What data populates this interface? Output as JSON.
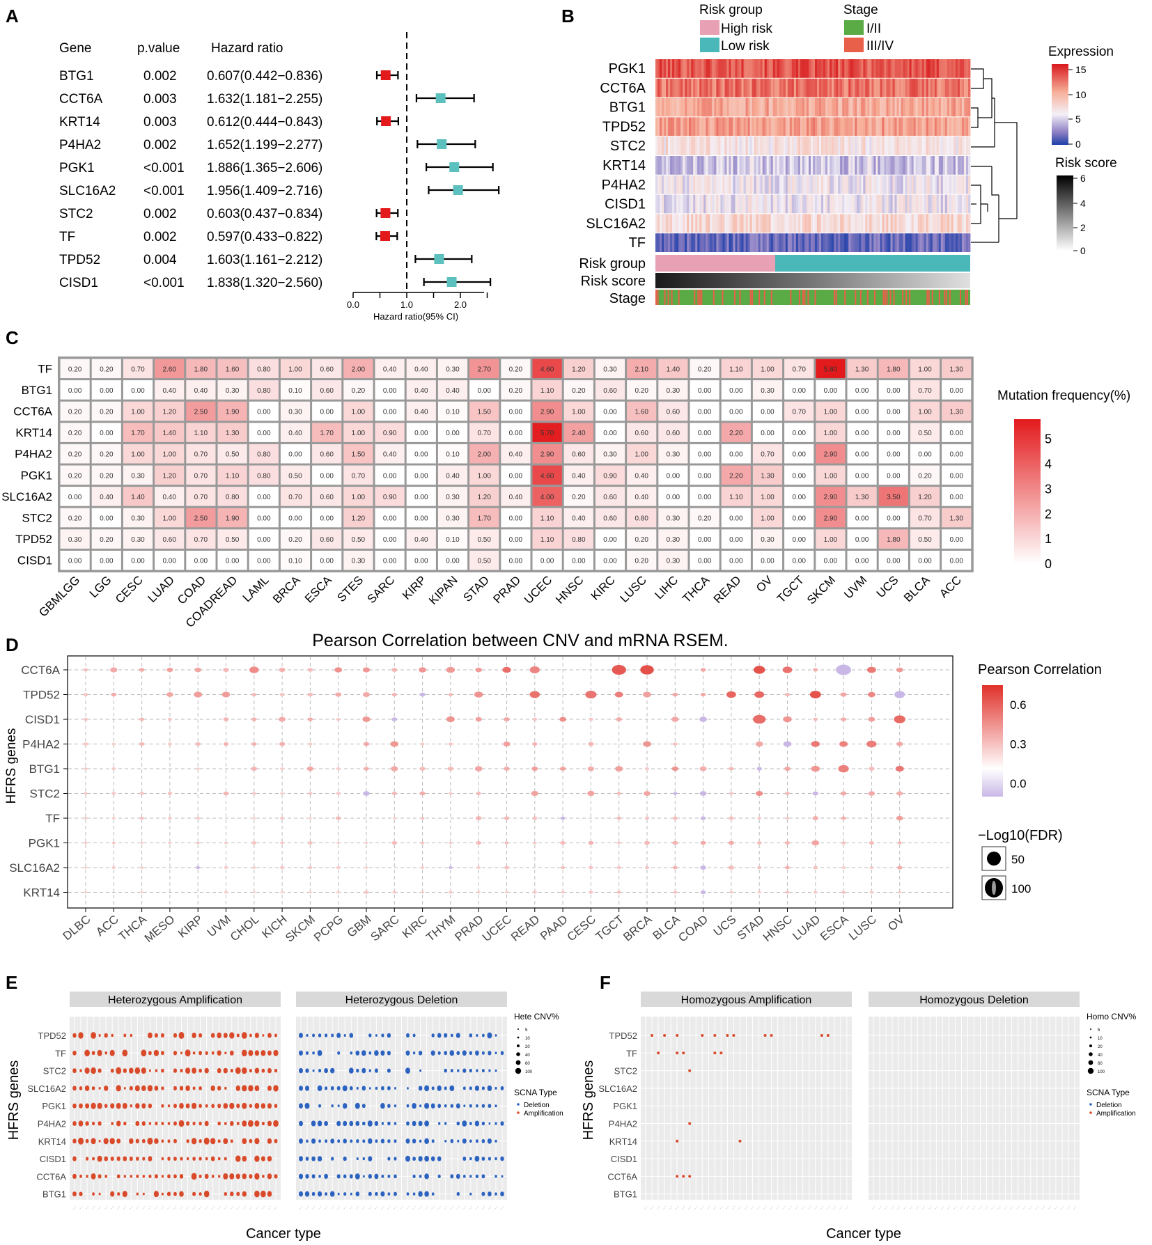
{
  "colors": {
    "red": "#e31a1c",
    "teal": "#5bc0be",
    "high_risk": "#e8a0b4",
    "low_risk": "#4ab8b8",
    "stage12": "#5aaa46",
    "stage34": "#e8604a",
    "amp": "#d94a2a",
    "del": "#2c63c0",
    "panel_bg": "#ebebeb",
    "strip": "#d9d9d9"
  },
  "panelA": {
    "letter": "A",
    "headers": {
      "gene": "Gene",
      "p": "p.value",
      "hr": "Hazard ratio"
    },
    "rows": [
      {
        "gene": "BTG1",
        "p": "0.002",
        "hr_text": "0.607(0.442−0.836)",
        "hr": 0.607,
        "lo": 0.442,
        "hi": 0.836
      },
      {
        "gene": "CCT6A",
        "p": "0.003",
        "hr_text": "1.632(1.181−2.255)",
        "hr": 1.632,
        "lo": 1.181,
        "hi": 2.255
      },
      {
        "gene": "KRT14",
        "p": "0.003",
        "hr_text": "0.612(0.444−0.843)",
        "hr": 0.612,
        "lo": 0.444,
        "hi": 0.843
      },
      {
        "gene": "P4HA2",
        "p": "0.002",
        "hr_text": "1.652(1.199−2.277)",
        "hr": 1.652,
        "lo": 1.199,
        "hi": 2.277
      },
      {
        "gene": "PGK1",
        "p": "<0.001",
        "hr_text": "1.886(1.365−2.606)",
        "hr": 1.886,
        "lo": 1.365,
        "hi": 2.606
      },
      {
        "gene": "SLC16A2",
        "p": "<0.001",
        "hr_text": "1.956(1.409−2.716)",
        "hr": 1.956,
        "lo": 1.409,
        "hi": 2.716
      },
      {
        "gene": "STC2",
        "p": "0.002",
        "hr_text": "0.603(0.437−0.834)",
        "hr": 0.603,
        "lo": 0.437,
        "hi": 0.834
      },
      {
        "gene": "TF",
        "p": "0.002",
        "hr_text": "0.597(0.433−0.822)",
        "hr": 0.597,
        "lo": 0.433,
        "hi": 0.822
      },
      {
        "gene": "TPD52",
        "p": "0.004",
        "hr_text": "1.603(1.161−2.212)",
        "hr": 1.603,
        "lo": 1.161,
        "hi": 2.212
      },
      {
        "gene": "CISD1",
        "p": "<0.001",
        "hr_text": "1.838(1.320−2.560)",
        "hr": 1.838,
        "lo": 1.32,
        "hi": 2.56
      }
    ],
    "xticks": [
      "0.0",
      "1.0",
      "2.0"
    ],
    "xlabel": "Hazard ratio(95% CI)"
  },
  "panelB": {
    "letter": "B",
    "legend_risk_title": "Risk group",
    "legend_risk": [
      "High risk",
      "Low risk"
    ],
    "legend_stage_title": "Stage",
    "legend_stage": [
      "I/II",
      "III/IV"
    ],
    "genes": [
      "PGK1",
      "CCT6A",
      "BTG1",
      "TPD52",
      "STC2",
      "KRT14",
      "P4HA2",
      "CISD1",
      "SLC16A2",
      "TF"
    ],
    "annotations": [
      "Risk group",
      "Risk score",
      "Stage"
    ],
    "expression_title": "Expression",
    "expression_ticks": [
      "15",
      "10",
      "5",
      "0"
    ],
    "riskscore_title": "Risk score",
    "riskscore_ticks": [
      "6",
      "4",
      "2",
      "0"
    ]
  },
  "panelC": {
    "letter": "C",
    "legend_title": "Mutation frequency(%)",
    "legend_ticks": [
      "5",
      "4",
      "3",
      "2",
      "1",
      "0"
    ]
  },
  "panelD": {
    "letter": "D",
    "title": "Pearson Correlation between CNV and mRNA RSEM.",
    "ylabel": "HFRS genes",
    "legend_title": "Pearson Correlation",
    "legend_ticks": [
      "0.6",
      "0.3",
      "0.0"
    ],
    "size_title": "−Log10(FDR)",
    "size_ticks": [
      "50",
      "100"
    ]
  },
  "panelE": {
    "letter": "E",
    "facets": [
      "Heterozygous Amplification",
      "Heterozygous Deletion"
    ],
    "ylabel": "HFRS genes",
    "xlabel": "Cancer type",
    "genes": [
      "TPD52",
      "TF",
      "STC2",
      "SLC16A2",
      "PGK1",
      "P4HA2",
      "KRT14",
      "CISD1",
      "CCT6A",
      "BTG1"
    ],
    "size_title": "Hete CNV%",
    "size_ticks": [
      "5",
      "10",
      "20",
      "40",
      "60",
      "100"
    ],
    "type_title": "SCNA Type",
    "type_items": [
      "Deletion",
      "Amplification"
    ]
  },
  "panelF": {
    "letter": "F",
    "facets": [
      "Homozygous Amplification",
      "Homozygous Deletion"
    ],
    "ylabel": "HFRS genes",
    "xlabel": "Cancer type",
    "genes": [
      "TPD52",
      "TF",
      "STC2",
      "SLC16A2",
      "PGK1",
      "P4HA2",
      "KRT14",
      "CISD1",
      "CCT6A",
      "BTG1"
    ],
    "size_title": "Homo CNV%",
    "size_ticks": [
      "5",
      "10",
      "20",
      "40",
      "60",
      "100"
    ],
    "type_title": "SCNA Type",
    "type_items": [
      "Deletion",
      "Amplification"
    ]
  },
  "chart_data": [
    {
      "type": "forest",
      "id": "A",
      "title": "",
      "xlabel": "Hazard ratio(95% CI)",
      "xlim": [
        0,
        3
      ],
      "reference_line": 1.0
    },
    {
      "type": "heatmap",
      "id": "B",
      "rows": [
        "PGK1",
        "CCT6A",
        "BTG1",
        "TPD52",
        "STC2",
        "KRT14",
        "P4HA2",
        "CISD1",
        "SLC16A2",
        "TF"
      ],
      "approx_mean_expression": [
        13,
        12,
        10,
        10.5,
        7,
        5,
        6,
        6,
        7.5,
        2
      ],
      "samples": 450,
      "high_risk_fraction": 0.38,
      "value_range": [
        0,
        15
      ],
      "risk_score_range": [
        0,
        6
      ]
    },
    {
      "type": "heatmap",
      "id": "C",
      "rows": [
        "TF",
        "BTG1",
        "CCT6A",
        "KRT14",
        "P4HA2",
        "PGK1",
        "SLC16A2",
        "STC2",
        "TPD52",
        "CISD1"
      ],
      "cols": [
        "GBMLGG",
        "LGG",
        "CESC",
        "LUAD",
        "COAD",
        "COADREAD",
        "LAML",
        "BRCA",
        "ESCA",
        "STES",
        "SARC",
        "KIRP",
        "KIPAN",
        "STAD",
        "PRAD",
        "UCEC",
        "HNSC",
        "KIRC",
        "LUSC",
        "LIHC",
        "THCA",
        "READ",
        "OV",
        "TGCT",
        "SKCM",
        "UVM",
        "UCS",
        "BLCA",
        "ACC"
      ],
      "values": [
        [
          "0.20",
          "0.20",
          "0.70",
          "2.60",
          "1.80",
          "1.60",
          "0.80",
          "1.00",
          "0.60",
          "2.00",
          "0.40",
          "0.40",
          "0.30",
          "2.70",
          "0.20",
          "4.60",
          "1.20",
          "0.30",
          "2.10",
          "1.40",
          "0.20",
          "1.10",
          "1.00",
          "0.70",
          "5.80",
          "1.30",
          "1.80",
          "1.00",
          "1.30"
        ],
        [
          "0.00",
          "0.00",
          "0.00",
          "0.40",
          "0.40",
          "0.30",
          "0.80",
          "0.10",
          "0.60",
          "0.20",
          "0.00",
          "0.40",
          "0.40",
          "0.00",
          "0.20",
          "1.10",
          "0.20",
          "0.60",
          "0.20",
          "0.30",
          "0.00",
          "0.00",
          "0.30",
          "0.00",
          "0.00",
          "0.00",
          "0.00",
          "0.70",
          "0.00"
        ],
        [
          "0.20",
          "0.20",
          "1.00",
          "1.20",
          "2.50",
          "1.90",
          "0.00",
          "0.30",
          "0.00",
          "1.00",
          "0.00",
          "0.40",
          "0.10",
          "1.50",
          "0.00",
          "2.90",
          "1.00",
          "0.00",
          "1.60",
          "0.60",
          "0.00",
          "0.00",
          "0.00",
          "0.70",
          "1.00",
          "0.00",
          "0.00",
          "1.00",
          "1.30"
        ],
        [
          "0.20",
          "0.00",
          "1.70",
          "1.40",
          "1.10",
          "1.30",
          "0.00",
          "0.40",
          "1.70",
          "1.00",
          "0.90",
          "0.00",
          "0.00",
          "0.70",
          "0.00",
          "5.70",
          "2.40",
          "0.00",
          "0.60",
          "0.60",
          "0.00",
          "2.20",
          "0.00",
          "0.00",
          "1.00",
          "0.00",
          "0.00",
          "0.50",
          "0.00"
        ],
        [
          "0.20",
          "0.20",
          "1.00",
          "1.00",
          "0.70",
          "0.50",
          "0.80",
          "0.00",
          "0.60",
          "1.50",
          "0.40",
          "0.00",
          "0.10",
          "2.00",
          "0.40",
          "2.90",
          "0.60",
          "0.30",
          "1.00",
          "0.30",
          "0.00",
          "0.00",
          "0.70",
          "0.00",
          "2.90",
          "0.00",
          "0.00",
          "0.00",
          "0.00"
        ],
        [
          "0.20",
          "0.20",
          "0.30",
          "1.20",
          "0.70",
          "1.10",
          "0.80",
          "0.50",
          "0.00",
          "0.70",
          "0.00",
          "0.00",
          "0.40",
          "1.00",
          "0.00",
          "4.60",
          "0.40",
          "0.90",
          "0.40",
          "0.00",
          "0.00",
          "2.20",
          "1.30",
          "0.00",
          "1.00",
          "0.00",
          "0.00",
          "0.20",
          "0.00"
        ],
        [
          "0.00",
          "0.40",
          "1.40",
          "0.40",
          "0.70",
          "0.80",
          "0.00",
          "0.70",
          "0.60",
          "1.00",
          "0.90",
          "0.00",
          "0.30",
          "1.20",
          "0.40",
          "4.00",
          "0.20",
          "0.60",
          "0.40",
          "0.00",
          "0.00",
          "1.10",
          "1.00",
          "0.00",
          "2.90",
          "1.30",
          "3.50",
          "1.20",
          "0.00"
        ],
        [
          "0.20",
          "0.00",
          "0.30",
          "1.00",
          "2.50",
          "1.90",
          "0.00",
          "0.00",
          "0.00",
          "1.20",
          "0.00",
          "0.00",
          "0.30",
          "1.70",
          "0.00",
          "1.10",
          "0.40",
          "0.60",
          "0.80",
          "0.30",
          "0.20",
          "0.00",
          "1.00",
          "0.00",
          "2.90",
          "0.00",
          "0.00",
          "0.70",
          "1.30"
        ],
        [
          "0.30",
          "0.20",
          "0.30",
          "0.60",
          "0.70",
          "0.50",
          "0.00",
          "0.20",
          "0.60",
          "0.50",
          "0.00",
          "0.40",
          "0.10",
          "0.50",
          "0.00",
          "1.10",
          "0.80",
          "0.00",
          "0.20",
          "0.30",
          "0.00",
          "0.00",
          "0.30",
          "0.00",
          "1.00",
          "0.00",
          "1.80",
          "0.50",
          "0.00"
        ],
        [
          "0.00",
          "0.00",
          "0.00",
          "0.00",
          "0.00",
          "0.00",
          "0.00",
          "0.10",
          "0.00",
          "0.30",
          "0.00",
          "0.00",
          "0.00",
          "0.50",
          "0.00",
          "0.00",
          "0.00",
          "0.00",
          "0.20",
          "0.30",
          "0.00",
          "0.00",
          "0.00",
          "0.00",
          "0.00",
          "0.00",
          "0.00",
          "0.00",
          "0.00"
        ]
      ],
      "legend_range": [
        0,
        5.8
      ]
    },
    {
      "type": "scatter",
      "id": "D",
      "title": "Pearson Correlation between CNV and mRNA RSEM.",
      "ylabel": "HFRS genes",
      "genes": [
        "CCT6A",
        "TPD52",
        "CISD1",
        "P4HA2",
        "BTG1",
        "STC2",
        "TF",
        "PGK1",
        "SLC16A2",
        "KRT14"
      ],
      "cancers": [
        "DLBC",
        "ACC",
        "THCA",
        "MESO",
        "KIRP",
        "UVM",
        "CHOL",
        "KICH",
        "SKCM",
        "PCPG",
        "GBM",
        "SARC",
        "KIRC",
        "THYM",
        "PRAD",
        "UCEC",
        "READ",
        "PAAD",
        "CESC",
        "TGCT",
        "BRCA",
        "BLCA",
        "COAD",
        "UCS",
        "STAD",
        "HNSC",
        "LUAD",
        "ESCA",
        "LUSC",
        "OV"
      ],
      "correlation_range": [
        -0.1,
        0.75
      ]
    },
    {
      "type": "scatter",
      "id": "E",
      "facets": [
        "Heterozygous Amplification",
        "Heterozygous Deletion"
      ],
      "xlabel": "Cancer type",
      "ylabel": "HFRS genes",
      "genes": [
        "TPD52",
        "TF",
        "STC2",
        "SLC16A2",
        "PGK1",
        "P4HA2",
        "KRT14",
        "CISD1",
        "CCT6A",
        "BTG1"
      ],
      "n_cancers": 33
    },
    {
      "type": "scatter",
      "id": "F",
      "facets": [
        "Homozygous Amplification",
        "Homozygous Deletion"
      ],
      "xlabel": "Cancer type",
      "ylabel": "HFRS genes",
      "genes": [
        "TPD52",
        "TF",
        "STC2",
        "SLC16A2",
        "PGK1",
        "P4HA2",
        "KRT14",
        "CISD1",
        "CCT6A",
        "BTG1"
      ],
      "n_cancers": 33,
      "points": [
        {
          "gene": "TPD52",
          "cancer_index": [
            1,
            3,
            5,
            9,
            11,
            13,
            14,
            19,
            20,
            28,
            29
          ]
        },
        {
          "gene": "TF",
          "cancer_index": [
            2,
            5,
            6,
            11,
            12
          ]
        },
        {
          "gene": "STC2",
          "cancer_index": [
            7
          ]
        },
        {
          "gene": "P4HA2",
          "cancer_index": [
            7
          ]
        },
        {
          "gene": "KRT14",
          "cancer_index": [
            5,
            15
          ]
        },
        {
          "gene": "CCT6A",
          "cancer_index": [
            5,
            6,
            7
          ]
        }
      ]
    }
  ]
}
